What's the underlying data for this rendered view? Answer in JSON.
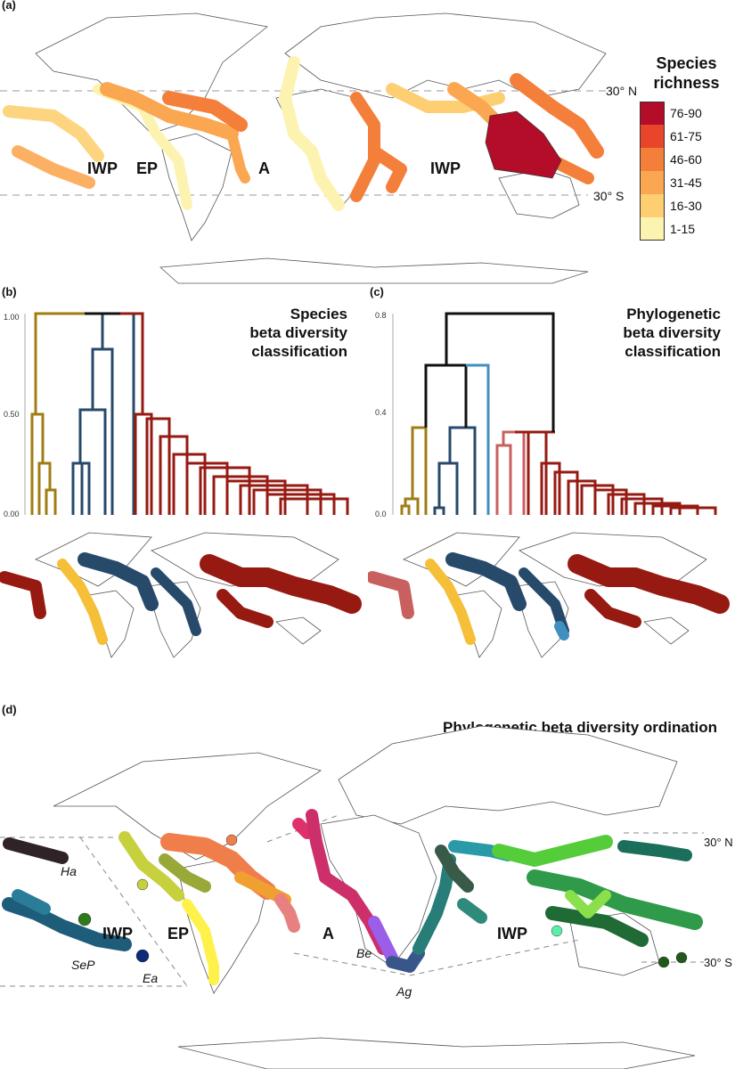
{
  "panels": {
    "a": {
      "label": "(a)",
      "lat_north": "30° N",
      "lat_south": "30° S",
      "regions": [
        "IWP",
        "EP",
        "A",
        "IWP"
      ],
      "legend": {
        "title_line1": "Species",
        "title_line2": "richness",
        "bins": [
          {
            "label": "76-90",
            "color": "#b30d2a"
          },
          {
            "label": "61-75",
            "color": "#e8452a"
          },
          {
            "label": "46-60",
            "color": "#f47f3a"
          },
          {
            "label": "31-45",
            "color": "#fba752"
          },
          {
            "label": "16-30",
            "color": "#fdcf72"
          },
          {
            "label": "1-15",
            "color": "#fdf3b0"
          }
        ]
      }
    },
    "b": {
      "label": "(b)",
      "title_line1": "Species",
      "title_line2": "beta diversity",
      "title_line3": "classification",
      "y_ticks": [
        "1.00",
        "0.50",
        "0.00"
      ],
      "cluster_colors": {
        "gold": "#a07d12",
        "blue": "#274a6b",
        "red": "#961a12",
        "yellow": "#f5c038"
      }
    },
    "c": {
      "label": "(c)",
      "title_line1": "Phylogenetic",
      "title_line2": "beta diversity",
      "title_line3": "classification",
      "y_ticks": [
        "0.8",
        "0.4",
        "0.0"
      ],
      "cluster_colors": {
        "gold": "#a07d12",
        "blue": "#274a6b",
        "lightblue": "#3f8fbf",
        "pink": "#c96060",
        "red": "#961a12",
        "black": "#111111"
      }
    },
    "d": {
      "label": "(d)",
      "title": "Phylogenetic beta diversity ordination",
      "lat_north": "30° N",
      "lat_south": "30° S",
      "regions": [
        "IWP",
        "EP",
        "A",
        "IWP"
      ],
      "subregions": [
        "Ha",
        "SeP",
        "Ea",
        "Be",
        "Ag"
      ]
    }
  }
}
